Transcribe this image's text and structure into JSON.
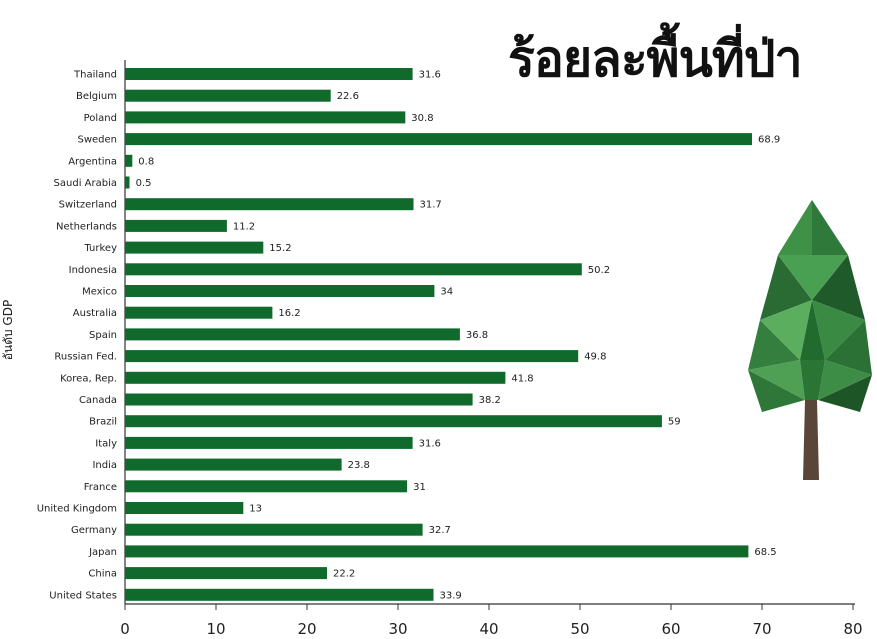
{
  "chart_data": {
    "type": "bar",
    "orientation": "horizontal",
    "title": "ร้อยละพื้นที่ป่า",
    "ylabel": "อันดับ GDP",
    "xlabel": "",
    "xlim": [
      0,
      80
    ],
    "xticks": [
      0,
      10,
      20,
      30,
      40,
      50,
      60,
      70,
      80
    ],
    "grid": false,
    "legend": "none",
    "categories": [
      "Thailand",
      "Belgium",
      "Poland",
      "Sweden",
      "Argentina",
      "Saudi Arabia",
      "Switzerland",
      "Netherlands",
      "Turkey",
      "Indonesia",
      "Mexico",
      "Australia",
      "Spain",
      "Russian Fed.",
      "Korea, Rep.",
      "Canada",
      "Brazil",
      "Italy",
      "India",
      "France",
      "United Kingdom",
      "Germany",
      "Japan",
      "China",
      "United States"
    ],
    "values": [
      31.6,
      22.6,
      30.8,
      68.9,
      0.8,
      0.5,
      31.7,
      11.2,
      15.2,
      50.2,
      34,
      16.2,
      36.8,
      49.8,
      41.8,
      38.2,
      59,
      31.6,
      23.8,
      31,
      13,
      32.7,
      68.5,
      22.2,
      33.9
    ],
    "value_labels": [
      "31.6",
      "22.6",
      "30.8",
      "68.9",
      "0.8",
      "0.5",
      "31.7",
      "11.2",
      "15.2",
      "50.2",
      "34",
      "16.2",
      "36.8",
      "49.8",
      "41.8",
      "38.2",
      "59",
      "31.6",
      "23.8",
      "31",
      "13",
      "32.7",
      "68.5",
      "22.2",
      "33.9"
    ],
    "colors": {
      "bar": "#0f6a2b",
      "text": "#222222",
      "axis": "#333333"
    }
  },
  "decoration": {
    "icon": "polygon-tree-icon"
  }
}
